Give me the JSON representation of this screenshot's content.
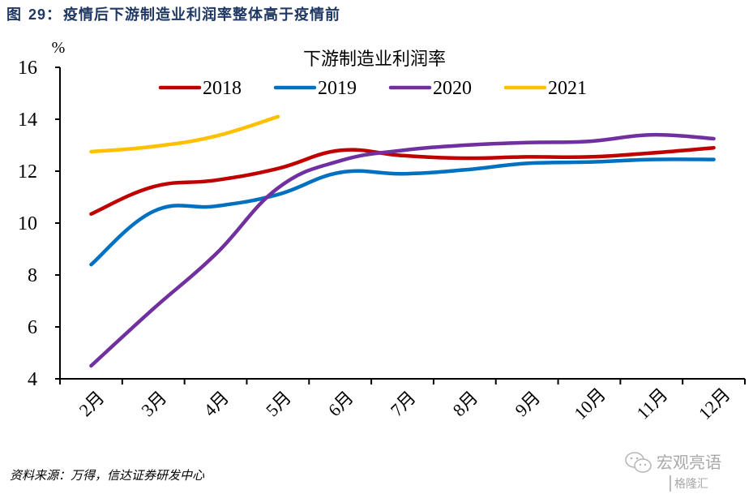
{
  "figure": {
    "label": "图",
    "number": "29：",
    "title": "疫情后下游制造业利润率整体高于疫情前"
  },
  "source": "资料来源：万得，信达证券研发中心",
  "watermark": {
    "icon": "wechat-icon",
    "main": "宏观亮语",
    "sub": "格隆汇"
  },
  "chart_data": {
    "type": "line",
    "title": "下游制造业利润率",
    "xlabel": "",
    "ylabel": "%",
    "ylim": [
      4,
      16
    ],
    "yticks": [
      4,
      6,
      8,
      10,
      12,
      14,
      16
    ],
    "ytick_labels": [
      "4",
      "6",
      "8",
      "10",
      "12",
      "14",
      "16"
    ],
    "categories": [
      "2月",
      "3月",
      "4月",
      "5月",
      "6月",
      "7月",
      "8月",
      "9月",
      "10月",
      "11月",
      "12月"
    ],
    "grid": false,
    "legend_position": "top-center",
    "smooth": true,
    "series": [
      {
        "name": "2018",
        "color": "#c00000",
        "values": [
          10.35,
          11.4,
          11.65,
          12.1,
          12.8,
          12.6,
          12.5,
          12.55,
          12.55,
          12.7,
          12.9
        ]
      },
      {
        "name": "2019",
        "color": "#0070c0",
        "values": [
          8.4,
          10.45,
          10.65,
          11.1,
          11.95,
          11.9,
          12.05,
          12.3,
          12.35,
          12.45,
          12.45
        ]
      },
      {
        "name": "2020",
        "color": "#7030a0",
        "values": [
          4.5,
          6.7,
          8.8,
          11.35,
          12.4,
          12.8,
          13.0,
          13.1,
          13.15,
          13.4,
          13.25
        ]
      },
      {
        "name": "2021",
        "color": "#ffc000",
        "values": [
          12.75,
          12.95,
          13.35,
          14.1
        ]
      }
    ]
  }
}
